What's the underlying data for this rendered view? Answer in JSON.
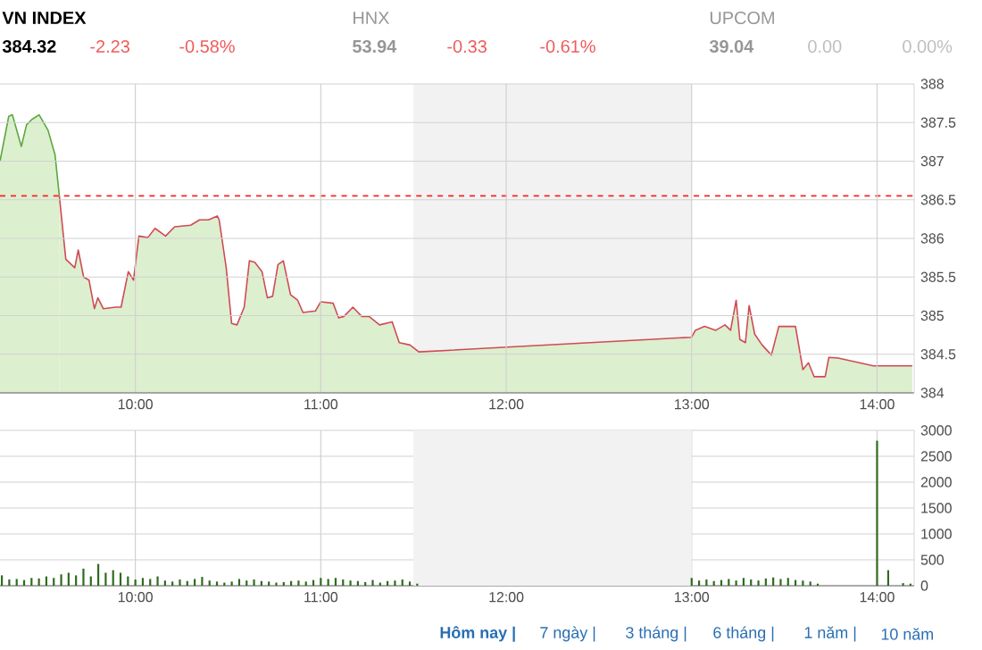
{
  "chart_data": [
    {
      "type": "area",
      "xlim": [
        9.27,
        14.2
      ],
      "ylim": [
        384,
        388
      ],
      "xticks": [
        {
          "value": 10,
          "label": "10:00"
        },
        {
          "value": 11,
          "label": "11:00"
        },
        {
          "value": 12,
          "label": "12:00"
        },
        {
          "value": 13,
          "label": "13:00"
        },
        {
          "value": 14,
          "label": "14:00"
        }
      ],
      "yticks": [
        384,
        384.5,
        385,
        385.5,
        386,
        386.5,
        387,
        387.5,
        388
      ],
      "grid": true,
      "ref_lines": [
        {
          "axis": "y",
          "value": 386.55,
          "color": "#ff2020",
          "line_style": "dashed"
        }
      ],
      "bands": [
        {
          "axis": "x",
          "from": 11.5,
          "to": 13,
          "color": "#f2f2f2"
        }
      ],
      "series": [
        {
          "color": "#5aa83c",
          "x": [
            9.27,
            9.317,
            9.337,
            9.385,
            9.413,
            9.442,
            9.481,
            9.529,
            9.567,
            9.587,
            9.59
          ],
          "values": [
            387.0,
            387.58,
            387.6,
            387.19,
            387.47,
            387.54,
            387.6,
            387.4,
            387.08,
            386.62,
            386.55
          ]
        },
        {
          "color": "#d04a55",
          "x": [
            9.59,
            9.625,
            9.673,
            9.692,
            9.721,
            9.75,
            9.779,
            9.798,
            9.827,
            9.894,
            9.923,
            9.962,
            9.99,
            10.019,
            10.067,
            10.106,
            10.163,
            10.212,
            10.298,
            10.346,
            10.394,
            10.442,
            10.452,
            10.49,
            10.519,
            10.548,
            10.587,
            10.615,
            10.644,
            10.683,
            10.712,
            10.74,
            10.769,
            10.798,
            10.837,
            10.875,
            10.904,
            10.971,
            11.0,
            11.067,
            11.096,
            11.125,
            11.173,
            11.221,
            11.26,
            11.317,
            11.385,
            11.423,
            11.481,
            11.529,
            13.0,
            13.02,
            13.07,
            13.13,
            13.18,
            13.21,
            13.24,
            13.26,
            13.29,
            13.31,
            13.34,
            13.38,
            13.43,
            13.47,
            13.52,
            13.56,
            13.6,
            13.63,
            13.66,
            13.72,
            13.74,
            13.79,
            13.98,
            14.19
          ],
          "values": [
            386.55,
            385.73,
            385.62,
            385.85,
            385.5,
            385.46,
            385.09,
            385.23,
            385.09,
            385.11,
            385.11,
            385.57,
            385.46,
            386.03,
            386.01,
            386.13,
            386.03,
            386.15,
            386.17,
            386.24,
            386.24,
            386.29,
            386.24,
            385.62,
            384.9,
            384.88,
            385.11,
            385.71,
            385.69,
            385.57,
            385.23,
            385.25,
            385.66,
            385.71,
            385.27,
            385.2,
            385.04,
            385.06,
            385.18,
            385.16,
            384.97,
            384.99,
            385.11,
            384.99,
            384.99,
            384.88,
            384.92,
            384.65,
            384.62,
            384.53,
            384.72,
            384.81,
            384.86,
            384.81,
            384.88,
            384.81,
            385.2,
            384.69,
            384.65,
            385.13,
            384.76,
            384.62,
            384.49,
            384.86,
            384.86,
            384.86,
            384.3,
            384.39,
            384.21,
            384.21,
            384.46,
            384.45,
            384.35,
            384.35
          ]
        }
      ],
      "annotations": [
        "VN INDEX",
        "384.32",
        "-2.23",
        "-0.58%",
        "HNX",
        "53.94",
        "-0.33",
        "-0.61%",
        "UPCOM",
        "39.04",
        "0.00",
        "0.00%"
      ]
    },
    {
      "type": "bar",
      "xlim": [
        9.27,
        14.2
      ],
      "ylim": [
        0,
        3000
      ],
      "xticks": [
        {
          "value": 10,
          "label": "10:00"
        },
        {
          "value": 11,
          "label": "11:00"
        },
        {
          "value": 12,
          "label": "12:00"
        },
        {
          "value": 13,
          "label": "13:00"
        },
        {
          "value": 14,
          "label": "14:00"
        }
      ],
      "yticks": [
        0,
        500,
        1000,
        1500,
        2000,
        2500,
        3000
      ],
      "grid": true,
      "bands": [
        {
          "axis": "x",
          "from": 11.5,
          "to": 13,
          "color": "#f2f2f2"
        }
      ],
      "color": "#2e6b1e",
      "x": [
        9.28,
        9.32,
        9.36,
        9.4,
        9.44,
        9.48,
        9.52,
        9.56,
        9.6,
        9.64,
        9.68,
        9.72,
        9.76,
        9.8,
        9.84,
        9.88,
        9.92,
        9.96,
        10.0,
        10.04,
        10.08,
        10.12,
        10.16,
        10.2,
        10.24,
        10.28,
        10.32,
        10.36,
        10.4,
        10.44,
        10.48,
        10.52,
        10.56,
        10.6,
        10.64,
        10.68,
        10.72,
        10.76,
        10.8,
        10.84,
        10.88,
        10.92,
        10.96,
        11.0,
        11.04,
        11.08,
        11.12,
        11.16,
        11.2,
        11.24,
        11.28,
        11.32,
        11.36,
        11.4,
        11.44,
        11.48,
        11.52,
        13.0,
        13.04,
        13.08,
        13.12,
        13.16,
        13.2,
        13.24,
        13.28,
        13.32,
        13.36,
        13.4,
        13.44,
        13.48,
        13.52,
        13.56,
        13.6,
        13.64,
        13.68,
        14.0,
        14.06,
        14.14,
        14.18
      ],
      "values": [
        200,
        120,
        130,
        110,
        150,
        140,
        180,
        150,
        220,
        250,
        200,
        330,
        180,
        420,
        250,
        300,
        250,
        180,
        120,
        150,
        130,
        180,
        100,
        80,
        120,
        90,
        130,
        170,
        100,
        80,
        60,
        80,
        130,
        100,
        120,
        90,
        80,
        60,
        70,
        90,
        100,
        80,
        110,
        150,
        130,
        150,
        120,
        100,
        90,
        70,
        110,
        60,
        90,
        100,
        120,
        80,
        40,
        150,
        100,
        120,
        90,
        110,
        130,
        100,
        150,
        120,
        100,
        140,
        160,
        130,
        150,
        110,
        100,
        80,
        40,
        2800,
        300,
        50,
        40
      ],
      "annotations": [
        "Hôm nay |",
        "7 ngày |",
        "3 tháng |",
        "6 tháng |",
        "1 năm |",
        "10 năm"
      ]
    }
  ]
}
